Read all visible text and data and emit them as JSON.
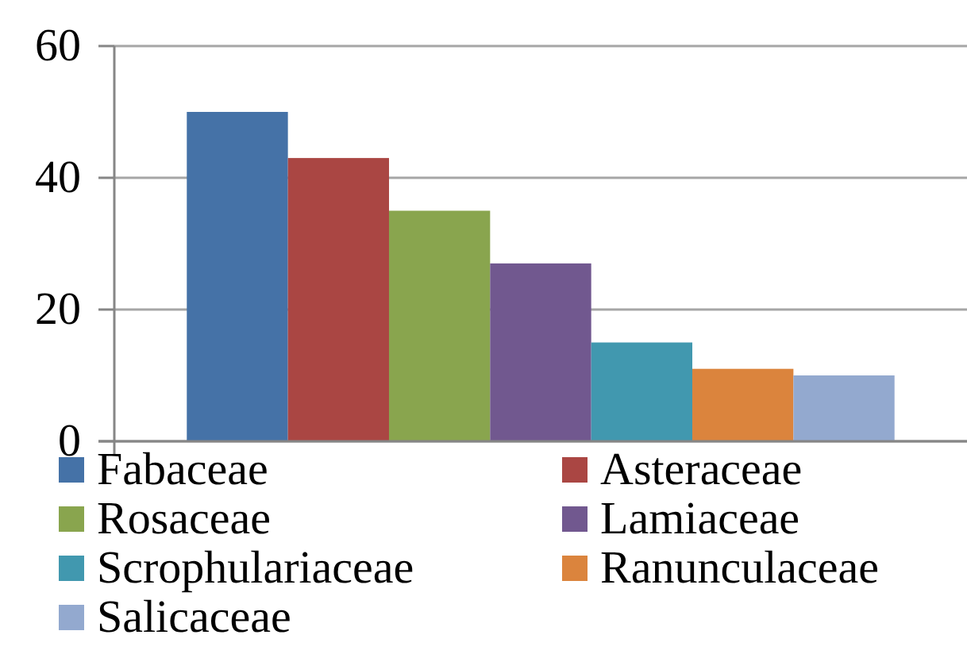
{
  "chart_data": {
    "type": "bar",
    "categories": [
      null
    ],
    "series": [
      {
        "name": "Fabaceae",
        "color": "#4572a7",
        "values": [
          50
        ]
      },
      {
        "name": "Asteraceae",
        "color": "#aa4643",
        "values": [
          43
        ]
      },
      {
        "name": "Rosaceae",
        "color": "#89a54e",
        "values": [
          35
        ]
      },
      {
        "name": "Lamiaceae",
        "color": "#71588f",
        "values": [
          27
        ]
      },
      {
        "name": "Scrophulariaceae",
        "color": "#4198af",
        "values": [
          15
        ]
      },
      {
        "name": "Ranunculaceae",
        "color": "#db843d",
        "values": [
          11
        ]
      },
      {
        "name": "Salicaceae",
        "color": "#93a9cf",
        "values": [
          10
        ]
      }
    ],
    "ylim": [
      0,
      60
    ],
    "yticks": [
      0,
      20,
      40,
      60
    ],
    "grid": "y",
    "legend": "bottom",
    "tick_labels": "y"
  }
}
